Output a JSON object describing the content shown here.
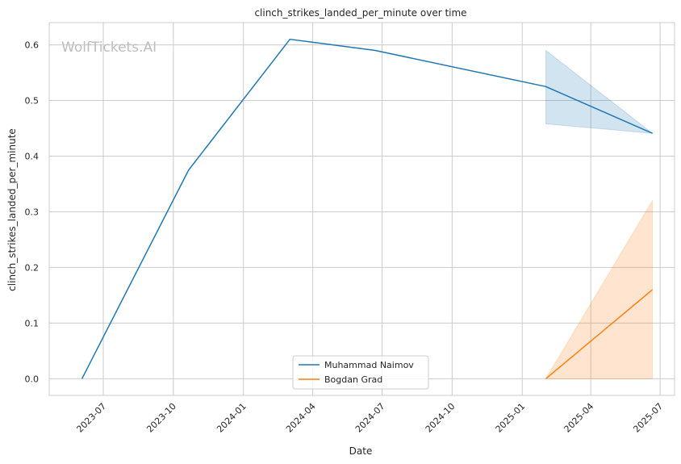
{
  "chart_data": {
    "type": "line",
    "title": "clinch_strikes_landed_per_minute over time",
    "xlabel": "Date",
    "ylabel": "clinch_strikes_landed_per_minute",
    "watermark": "WolfTickets.AI",
    "grid": true,
    "legend_position": "bottom-center",
    "x_ticks": [
      "2023-07",
      "2023-10",
      "2024-01",
      "2024-04",
      "2024-07",
      "2024-10",
      "2025-01",
      "2025-04",
      "2025-07"
    ],
    "y_ticks": [
      "0.0",
      "0.1",
      "0.2",
      "0.3",
      "0.4",
      "0.5",
      "0.6"
    ],
    "xlim": [
      "2023-04-21",
      "2025-07-20"
    ],
    "ylim": [
      -0.03,
      0.64
    ],
    "series": [
      {
        "name": "Muhammad Naimov",
        "color": "#1f77b4",
        "points": [
          {
            "date": "2023-06-03",
            "y": 0.0
          },
          {
            "date": "2023-10-21",
            "y": 0.375
          },
          {
            "date": "2024-03-02",
            "y": 0.61
          },
          {
            "date": "2024-06-22",
            "y": 0.59
          },
          {
            "date": "2025-02-01",
            "y": 0.525
          },
          {
            "date": "2025-06-21",
            "y": 0.441
          }
        ],
        "band": [
          {
            "date": "2025-02-01",
            "low": 0.458,
            "high": 0.59
          },
          {
            "date": "2025-06-21",
            "low": 0.441,
            "high": 0.441
          }
        ]
      },
      {
        "name": "Bogdan Grad",
        "color": "#ff7f0e",
        "points": [
          {
            "date": "2025-02-01",
            "y": 0.0
          },
          {
            "date": "2025-06-21",
            "y": 0.16
          }
        ],
        "band": [
          {
            "date": "2025-02-01",
            "low": 0.0,
            "high": 0.0
          },
          {
            "date": "2025-06-21",
            "low": 0.0,
            "high": 0.32
          }
        ]
      }
    ]
  }
}
